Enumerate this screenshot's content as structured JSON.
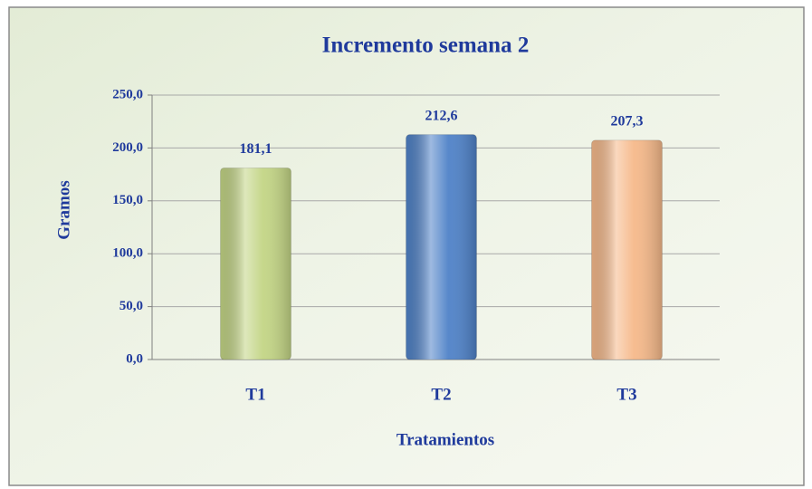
{
  "chart_data": {
    "type": "bar",
    "title": "Incremento semana 2",
    "x_label": "Tratamientos",
    "y_label": "Gramos",
    "categories": [
      "T1",
      "T2",
      "T3"
    ],
    "values": [
      181.1,
      212.6,
      207.3
    ],
    "value_labels": [
      "181,1",
      "212,6",
      "207,3"
    ],
    "colors": [
      "#c3d585",
      "#4f82c8",
      "#f6b98a"
    ],
    "ylim": [
      0,
      250
    ],
    "yticks": [
      {
        "value": 0,
        "label": "0,0"
      },
      {
        "value": 50,
        "label": "50,0"
      },
      {
        "value": 100,
        "label": "100,0"
      },
      {
        "value": 150,
        "label": "150,0"
      },
      {
        "value": 200,
        "label": "200,0"
      },
      {
        "value": 250,
        "label": "250,0"
      }
    ],
    "grid": true
  }
}
